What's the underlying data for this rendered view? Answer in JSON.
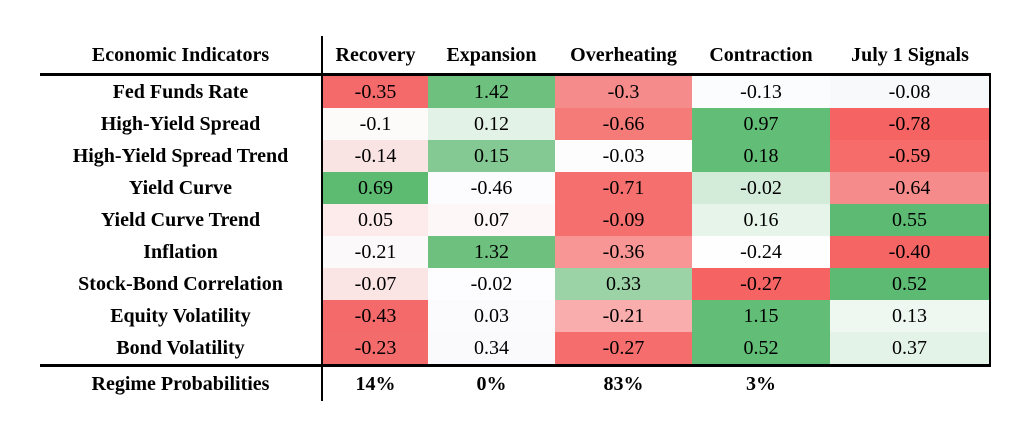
{
  "chart_data": {
    "type": "heatmap",
    "title": "",
    "row_header": "Economic Indicators",
    "columns": [
      "Recovery",
      "Expansion",
      "Overheating",
      "Contraction",
      "July 1 Signals"
    ],
    "rows": [
      {
        "label": "Fed Funds Rate",
        "values": [
          "-0.35",
          "1.42",
          "-0.3",
          "-0.13",
          "-0.08"
        ],
        "colors": [
          "#f4696a",
          "#6dc07e",
          "#f68b8b",
          "#fbfcfd",
          "#f7f9fa"
        ]
      },
      {
        "label": "High-Yield Spread",
        "values": [
          "-0.1",
          "0.12",
          "-0.66",
          "0.97",
          "-0.78"
        ],
        "colors": [
          "#fdfafa",
          "#e3f2e6",
          "#f57b79",
          "#62bd77",
          "#f56362"
        ]
      },
      {
        "label": "High-Yield Spread Trend",
        "values": [
          "-0.14",
          "0.15",
          "-0.03",
          "0.18",
          "-0.59"
        ],
        "colors": [
          "#fae3e3",
          "#84c993",
          "#fdfdfe",
          "#62bd77",
          "#f56c6a"
        ]
      },
      {
        "label": "Yield Curve",
        "values": [
          "0.69",
          "-0.46",
          "-0.71",
          "-0.02",
          "-0.64"
        ],
        "colors": [
          "#5cba71",
          "#fcfcfe",
          "#f56f6e",
          "#d3ecd9",
          "#f58c8b"
        ]
      },
      {
        "label": "Yield Curve Trend",
        "values": [
          "0.05",
          "0.07",
          "-0.09",
          "0.16",
          "0.55"
        ],
        "colors": [
          "#fdeaea",
          "#fdf7f7",
          "#f56f6e",
          "#e6f4e9",
          "#5cba72"
        ]
      },
      {
        "label": "Inflation",
        "values": [
          "-0.21",
          "1.32",
          "-0.36",
          "-0.24",
          "-0.40"
        ],
        "colors": [
          "#fcf9fa",
          "#6dc07e",
          "#f79695",
          "#fefeff",
          "#f56564"
        ]
      },
      {
        "label": "Stock-Bond Correlation",
        "values": [
          "-0.07",
          "-0.02",
          "0.33",
          "-0.27",
          "0.52"
        ],
        "colors": [
          "#fbe4e4",
          "#fdfcfe",
          "#9bd3a6",
          "#f56463",
          "#5cba72"
        ]
      },
      {
        "label": "Equity Volatility",
        "values": [
          "-0.43",
          "0.03",
          "-0.21",
          "1.15",
          "0.13"
        ],
        "colors": [
          "#f4696a",
          "#fbfbfd",
          "#f9aead",
          "#62bd77",
          "#eef8f0"
        ]
      },
      {
        "label": "Bond Volatility",
        "values": [
          "-0.23",
          "0.34",
          "-0.27",
          "0.52",
          "0.37"
        ],
        "colors": [
          "#f46b6c",
          "#fafafc",
          "#f56e6d",
          "#62bd77",
          "#e4f3e7"
        ]
      }
    ],
    "footer": {
      "label": "Regime Probabilities",
      "values": [
        "14%",
        "0%",
        "83%",
        "3%",
        ""
      ]
    },
    "palette": {
      "negative_strong": "#f4696a",
      "positive_strong": "#5cba72",
      "neutral": "#ffffff",
      "rule_color": "#000000"
    },
    "layout": {
      "grid": "off",
      "divider_after_label_column": true,
      "heavy_rule_under_header": true,
      "heavy_rule_above_footer": true
    }
  }
}
